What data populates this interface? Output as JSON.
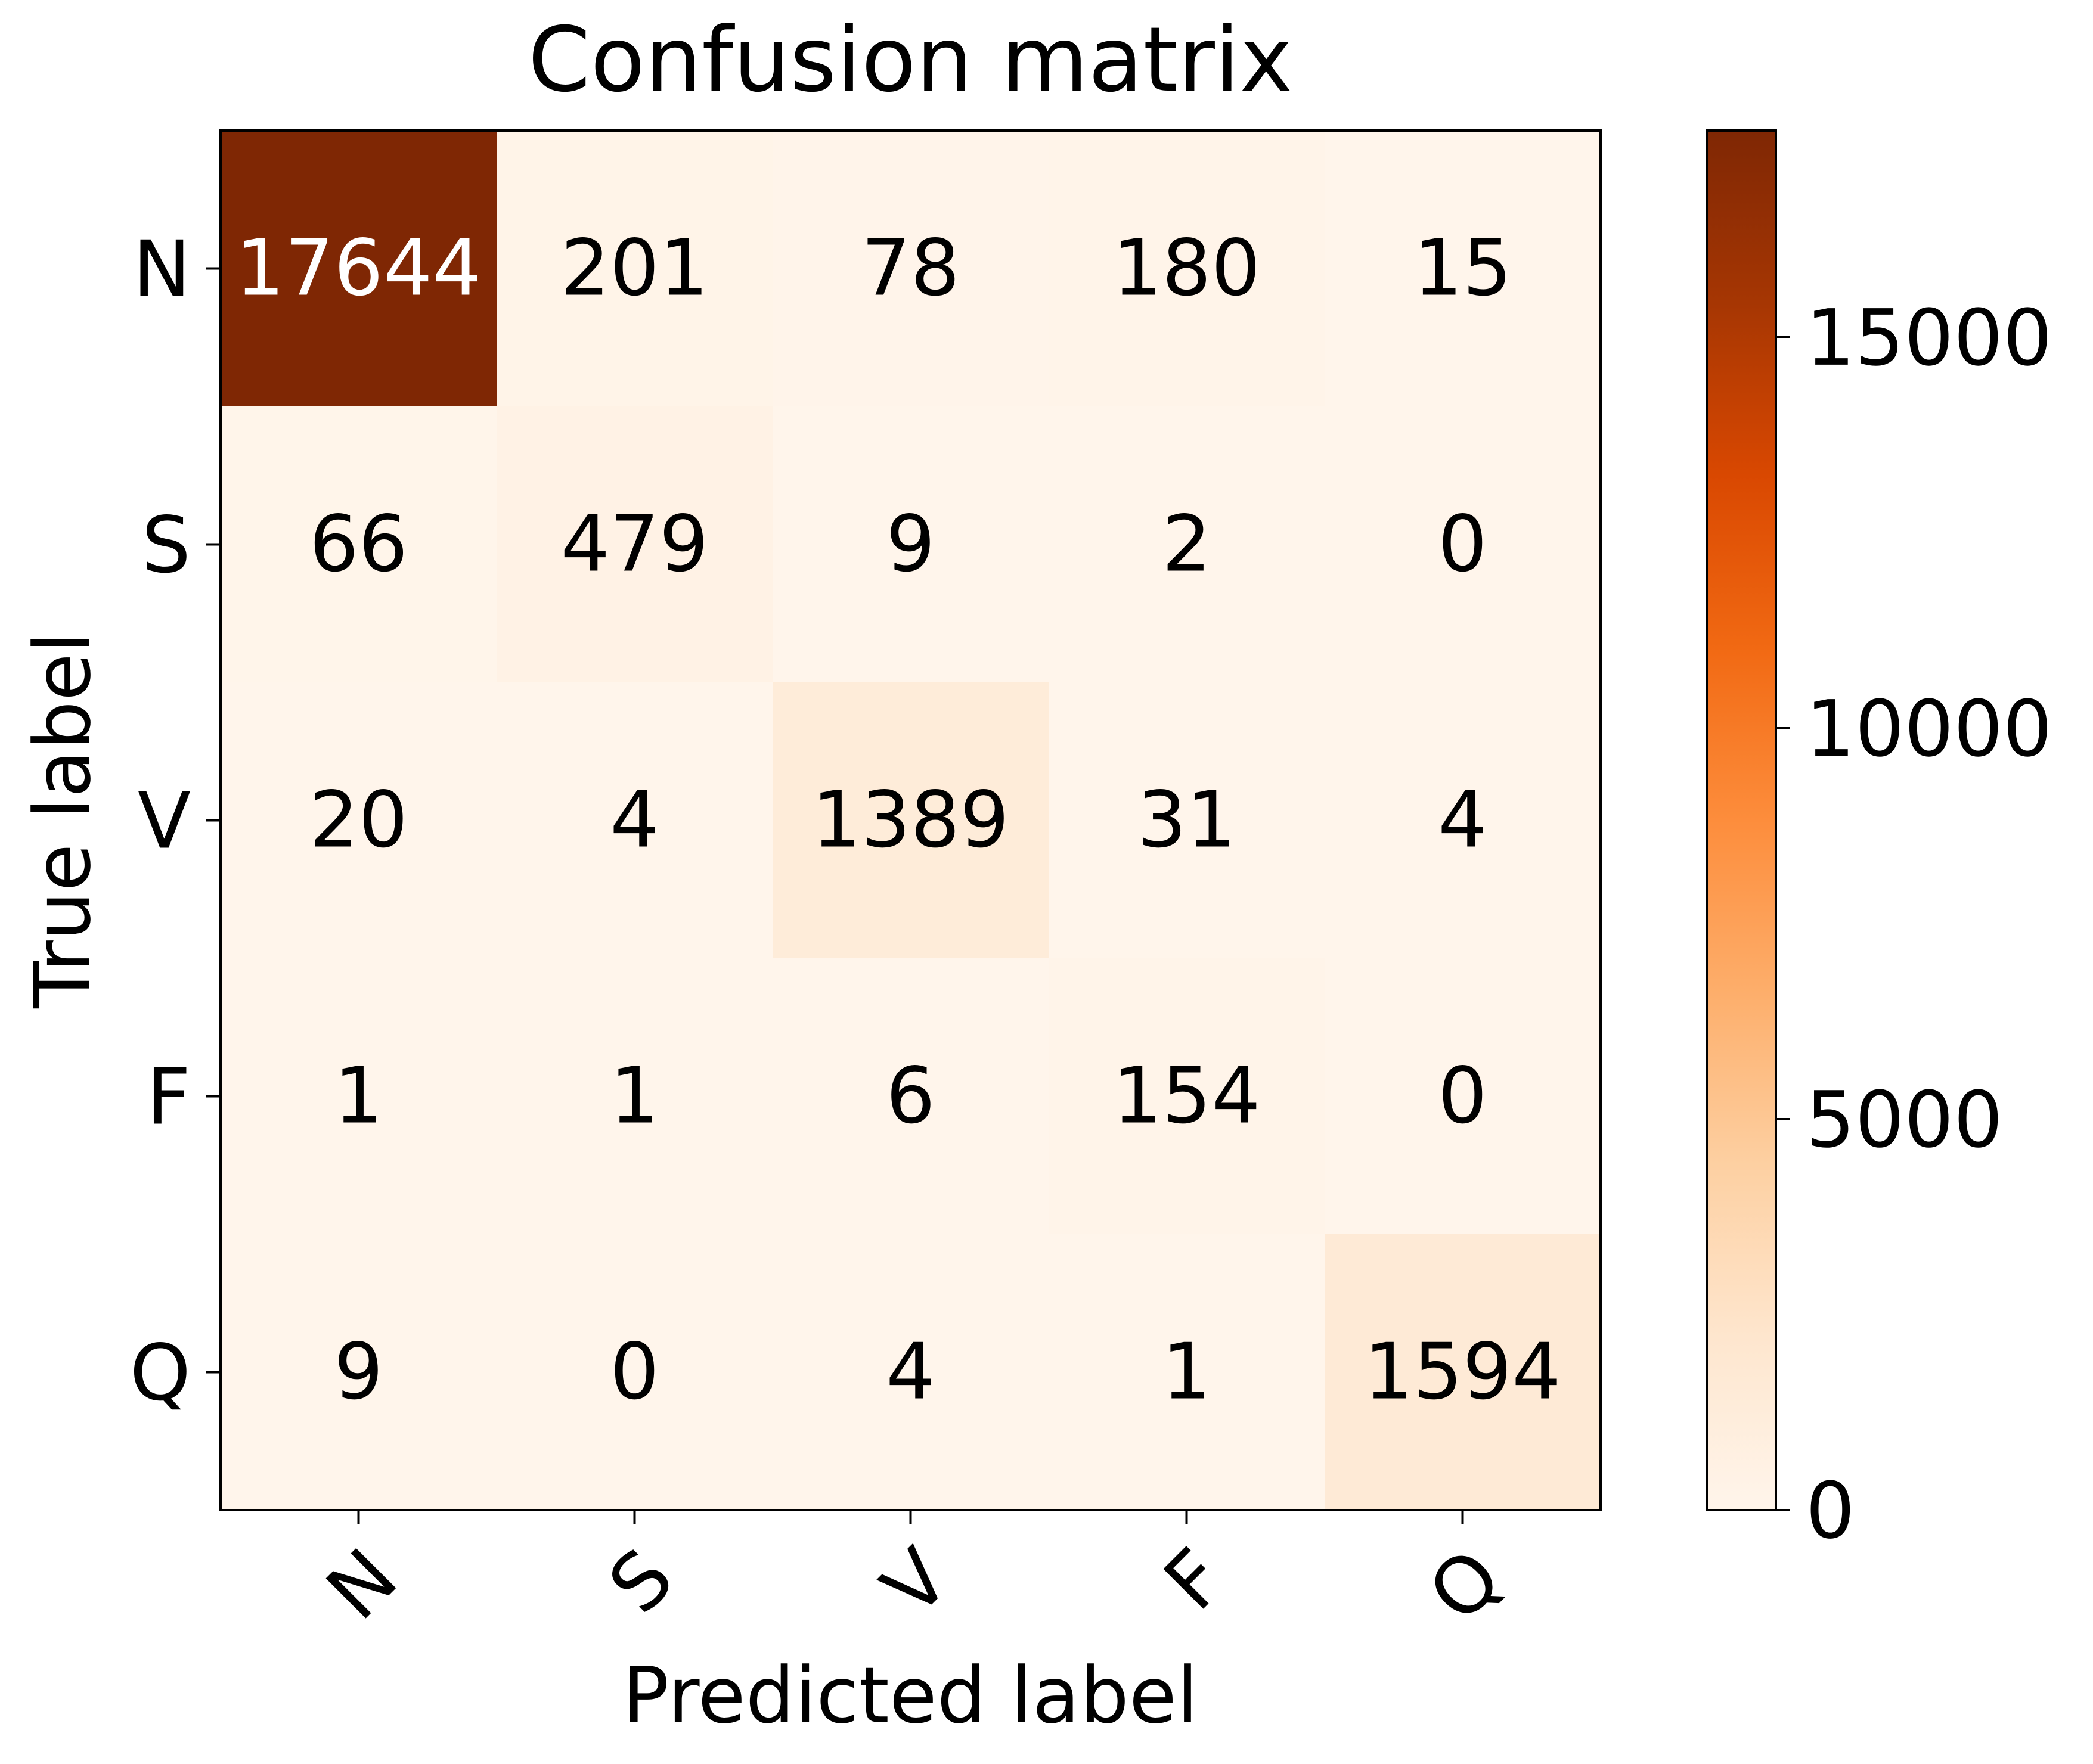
{
  "chart_data": {
    "type": "heatmap",
    "title": "Confusion matrix",
    "xlabel": "Predicted label",
    "ylabel": "True label",
    "x_categories": [
      "N",
      "S",
      "V",
      "F",
      "Q"
    ],
    "y_categories": [
      "N",
      "S",
      "V",
      "F",
      "Q"
    ],
    "values": [
      [
        17644,
        201,
        78,
        180,
        15
      ],
      [
        66,
        479,
        9,
        2,
        0
      ],
      [
        20,
        4,
        1389,
        31,
        4
      ],
      [
        1,
        1,
        6,
        154,
        0
      ],
      [
        9,
        0,
        4,
        1,
        1594
      ]
    ],
    "colormap": "Oranges",
    "colorbar": {
      "ticks": [
        0,
        5000,
        10000,
        15000
      ],
      "tick_labels": [
        "0",
        "5000",
        "10000",
        "15000"
      ],
      "range": [
        0,
        17644
      ]
    },
    "x_tick_rotation": "45 degrees",
    "text_color_on_dark": "#ffffff",
    "text_color_on_light": "#000000"
  }
}
